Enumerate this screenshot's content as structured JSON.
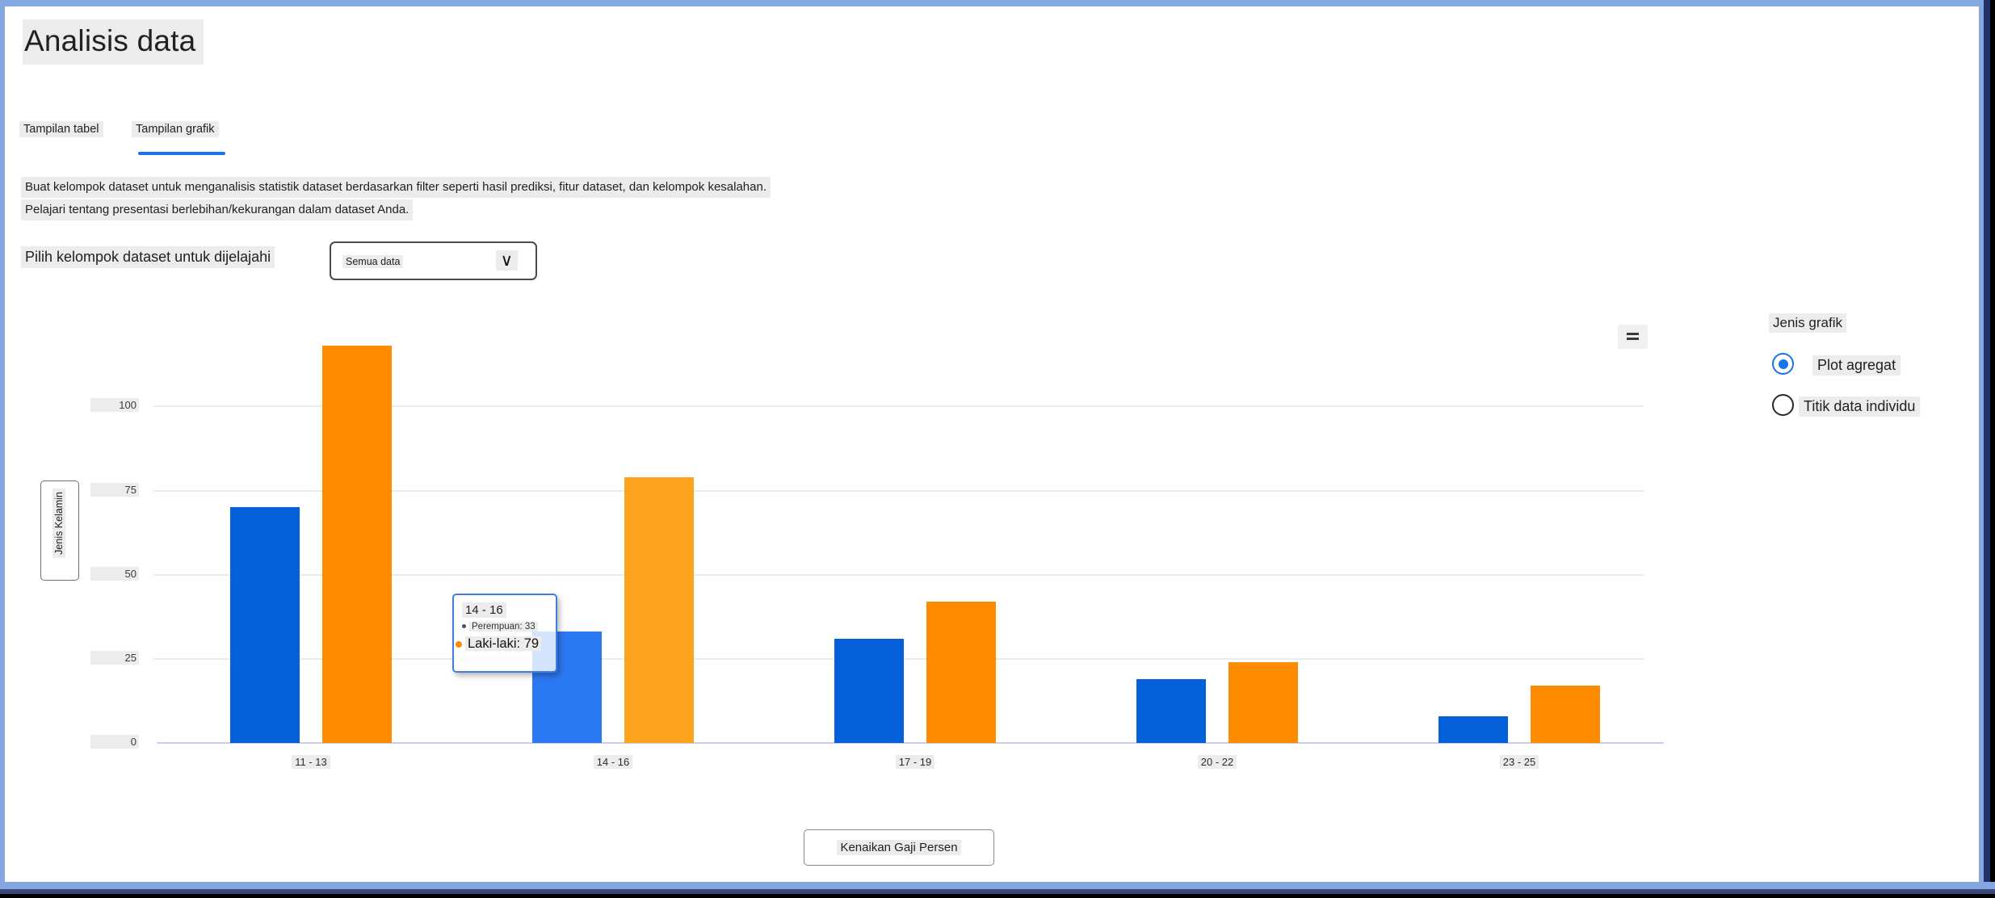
{
  "header": {
    "title": "Analisis data"
  },
  "tabs": [
    {
      "label": "Tampilan tabel",
      "active": false
    },
    {
      "label": "Tampilan grafik",
      "active": true
    }
  ],
  "description": {
    "line1": "Buat kelompok dataset untuk menganalisis statistik dataset berdasarkan filter seperti hasil prediksi, fitur dataset, dan kelompok kesalahan.",
    "line2": "Pelajari tentang presentasi berlebihan/kekurangan dalam dataset Anda."
  },
  "dataset_selector": {
    "label": "Pilih kelompok dataset untuk dijelajahi",
    "value": "Semua data",
    "chevron_icon": "∨"
  },
  "chart_menu": {
    "icon": "menu-lines-icon"
  },
  "graph_type": {
    "heading": "Jenis grafik",
    "options": [
      {
        "label": "Plot agregat",
        "selected": true
      },
      {
        "label": "Titik data individu",
        "selected": false
      }
    ]
  },
  "axes_buttons": {
    "y": "Jenis Kelamin",
    "x": "Kenaikan Gaji Persen"
  },
  "tooltip": {
    "title": "14 - 16",
    "rows": [
      {
        "series": "Perempuan",
        "value": 33
      },
      {
        "series": "Laki-laki",
        "value": 79
      }
    ]
  },
  "chart_data": {
    "type": "bar",
    "title": "",
    "categories": [
      "11 - 13",
      "14 - 16",
      "17 - 19",
      "20 - 22",
      "23 - 25"
    ],
    "series": [
      {
        "name": "Perempuan",
        "color": "#0560d9",
        "hover_color": "#2b79f2",
        "values": [
          70,
          33,
          31,
          19,
          8
        ]
      },
      {
        "name": "Laki-laki",
        "color": "#ff8c00",
        "hover_color": "#fda41f",
        "values": [
          118,
          79,
          42,
          24,
          17
        ]
      }
    ],
    "hovered_category_index": 1,
    "xlabel": "Kenaikan Gaji Persen",
    "ylabel": "Jenis Kelamin",
    "y_ticks": [
      0,
      25,
      50,
      75,
      100
    ],
    "ylim": [
      0,
      120
    ],
    "grid": true,
    "legend_position": "none"
  }
}
